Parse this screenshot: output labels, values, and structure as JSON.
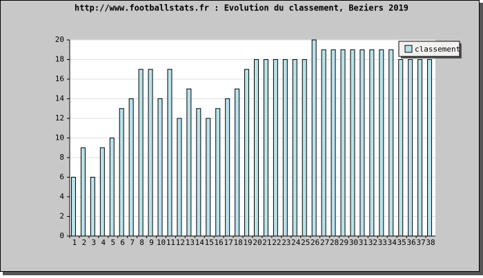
{
  "chart_data": {
    "type": "bar",
    "title": "http://www.footballstats.fr : Evolution du classement, Beziers 2019",
    "categories": [
      "1",
      "2",
      "3",
      "4",
      "5",
      "6",
      "7",
      "8",
      "9",
      "10",
      "11",
      "12",
      "13",
      "14",
      "15",
      "16",
      "17",
      "18",
      "19",
      "20",
      "21",
      "22",
      "23",
      "24",
      "25",
      "26",
      "27",
      "28",
      "29",
      "30",
      "31",
      "32",
      "33",
      "34",
      "35",
      "36",
      "37",
      "38"
    ],
    "series": [
      {
        "name": "classement",
        "color": "#b8e2ea",
        "values": [
          6,
          9,
          6,
          9,
          10,
          13,
          14,
          17,
          17,
          14,
          17,
          12,
          15,
          13,
          12,
          13,
          14,
          15,
          17,
          18,
          18,
          18,
          18,
          18,
          18,
          20,
          19,
          19,
          19,
          19,
          19,
          19,
          19,
          19,
          18,
          18,
          18,
          18
        ]
      }
    ],
    "ylim": [
      0,
      20
    ],
    "yticks": [
      0,
      2,
      4,
      6,
      8,
      10,
      12,
      14,
      16,
      18,
      20
    ],
    "grid": true,
    "legend": "top-right"
  }
}
